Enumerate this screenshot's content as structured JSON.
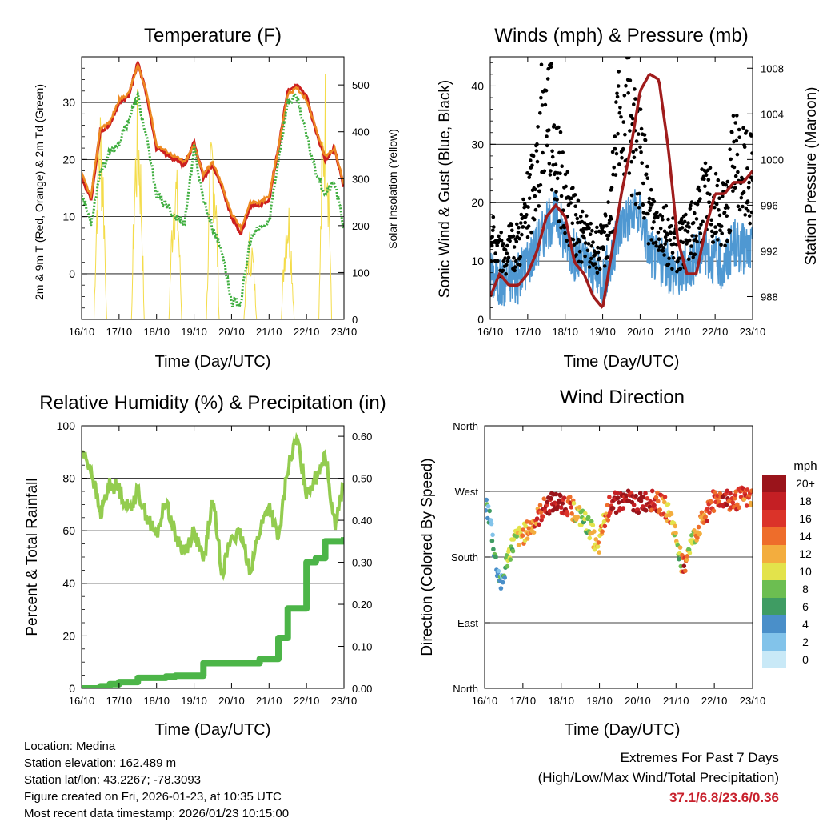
{
  "colors": {
    "temp2m": "#cc1f1f",
    "temp9m": "#ee8a22",
    "dewpoint": "#3fae3f",
    "solar": "#f4dc4a",
    "sonic_wind": "#4f98d2",
    "gust": "#000000",
    "pressure": "#a01c1c",
    "rh": "#93cc4f",
    "precip": "#4cb548",
    "extremes_text": "#c8202c"
  },
  "charts": {
    "temperature": {
      "title": "Temperature (F)",
      "xlabel": "Time (Day/UTC)",
      "ylabel_left": "2m & 9m T (Red, Orange) & 2m Td (Green)",
      "ylabel_right": "Solar Insolation (Yellow)"
    },
    "winds": {
      "title": "Winds (mph) & Pressure (mb)",
      "xlabel": "Time (Day/UTC)",
      "ylabel_left": "Sonic Wind & Gust (Blue, Black)",
      "ylabel_right": "Station Pressure (Maroon)"
    },
    "humidity": {
      "title": "Relative Humidity (%) & Precipitation (in)",
      "xlabel": "Time (Day/UTC)",
      "ylabel_left": "Percent & Total Rainfall"
    },
    "direction": {
      "title": "Wind Direction",
      "xlabel": "Time (Day/UTC)",
      "ylabel_left": "Direction (Colored By Speed)",
      "legend_title": "mph"
    }
  },
  "info": {
    "location": "Location: Medina",
    "elevation": "Station elevation: 162.489 m",
    "latlon": "Station lat/lon: 43.2267; -78.3093",
    "created": "Figure created on Fri, 2026-01-23, at 10:35 UTC",
    "latest": "Most recent data timestamp: 2026/01/23 10:15:00"
  },
  "extremes": {
    "title": "Extremes For Past 7 Days",
    "subtitle": "(High/Low/Max Wind/Total Precipitation)",
    "values": "37.1/6.8/23.6/0.36"
  },
  "chart_data": [
    {
      "id": "temperature",
      "type": "line",
      "title": "Temperature (F)",
      "x": [
        16,
        16.25,
        16.5,
        16.75,
        17,
        17.25,
        17.5,
        17.75,
        18,
        18.25,
        18.5,
        18.75,
        19,
        19.25,
        19.5,
        19.75,
        20,
        20.25,
        20.5,
        20.75,
        21,
        21.25,
        21.5,
        21.75,
        22,
        22.25,
        22.5,
        22.75,
        23
      ],
      "x_tick_labels": [
        "16/10",
        "17/10",
        "18/10",
        "19/10",
        "20/10",
        "21/10",
        "22/10",
        "23/10"
      ],
      "x_tick_values": [
        16,
        17,
        18,
        19,
        20,
        21,
        22,
        23
      ],
      "ylim": [
        -8,
        38
      ],
      "y_ticks": [
        0,
        10,
        20,
        30
      ],
      "y2lim": [
        0,
        560
      ],
      "y2_ticks": [
        0,
        100,
        200,
        300,
        400,
        500
      ],
      "series": [
        {
          "name": "2m T",
          "color_key": "temp2m",
          "values": [
            17,
            13,
            25,
            26,
            30,
            31,
            37,
            31,
            22,
            21,
            20,
            19,
            23,
            17,
            19,
            15,
            10,
            7,
            12,
            12,
            13,
            22,
            32,
            33,
            31,
            25,
            20,
            22,
            15
          ]
        },
        {
          "name": "9m T",
          "color_key": "temp9m",
          "values": [
            17.5,
            13.5,
            25.5,
            26.5,
            30.5,
            31.5,
            36.5,
            31.5,
            22.5,
            21.5,
            20.5,
            19.5,
            22.5,
            17.5,
            19.5,
            15.5,
            10.5,
            8,
            12.5,
            12.5,
            13.5,
            22,
            31.5,
            32.5,
            30.5,
            25.5,
            20.5,
            22,
            15.5
          ]
        },
        {
          "name": "2m Td",
          "color_key": "dewpoint",
          "values": [
            14,
            9,
            18,
            21,
            23,
            27,
            31,
            23,
            14,
            12,
            10,
            9,
            22,
            13,
            8,
            4,
            -5,
            -5,
            6,
            8,
            9,
            20,
            30,
            31,
            24,
            18,
            14,
            16,
            8
          ]
        }
      ],
      "solar_series": {
        "name": "Solar Insolation",
        "color_key": "solar",
        "axis": "right",
        "daily_peaks_x": [
          16.5,
          17.5,
          18.5,
          19.5,
          20.5,
          21.5,
          22.5
        ],
        "daily_peaks_values": [
          490,
          500,
          360,
          450,
          200,
          280,
          560
        ]
      }
    },
    {
      "id": "winds",
      "type": "line",
      "title": "Winds (mph) & Pressure (mb)",
      "x": [
        16,
        16.25,
        16.5,
        16.75,
        17,
        17.25,
        17.5,
        17.75,
        18,
        18.25,
        18.5,
        18.75,
        19,
        19.25,
        19.5,
        19.75,
        20,
        20.25,
        20.5,
        20.75,
        21,
        21.25,
        21.5,
        21.75,
        22,
        22.25,
        22.5,
        22.75,
        23
      ],
      "x_tick_labels": [
        "16/10",
        "17/10",
        "18/10",
        "19/10",
        "20/10",
        "21/10",
        "22/10",
        "23/10"
      ],
      "x_tick_values": [
        16,
        17,
        18,
        19,
        20,
        21,
        22,
        23
      ],
      "ylim": [
        0,
        45
      ],
      "y_ticks": [
        0,
        10,
        20,
        30,
        40
      ],
      "y2lim": [
        986,
        1009
      ],
      "y2_ticks": [
        988,
        992,
        996,
        1000,
        1004,
        1008
      ],
      "series": [
        {
          "name": "Sonic Wind",
          "color_key": "sonic_wind",
          "values": [
            8,
            6,
            7,
            7,
            10,
            13,
            16,
            18,
            14,
            11,
            10,
            8,
            7,
            10,
            17,
            18,
            18,
            12,
            10,
            9,
            8,
            9,
            11,
            12,
            10,
            9,
            13,
            12,
            12
          ]
        },
        {
          "name": "Gust",
          "color_key": "gust",
          "values": [
            15,
            11,
            12,
            13,
            19,
            26,
            40,
            28,
            20,
            16,
            14,
            12,
            12,
            20,
            39,
            32,
            29,
            18,
            17,
            14,
            12,
            14,
            17,
            21,
            19,
            17,
            27,
            25,
            24
          ]
        },
        {
          "name": "Station Pressure",
          "color_key": "pressure",
          "axis": "right",
          "values": [
            988,
            990,
            989,
            989,
            990,
            992,
            995,
            996,
            995,
            991,
            990,
            988,
            987,
            992,
            997,
            1001,
            1006,
            1007.5,
            1007,
            1001,
            993,
            990,
            990,
            994,
            997,
            997,
            998,
            998,
            999
          ]
        }
      ]
    },
    {
      "id": "humidity",
      "type": "line",
      "title": "Relative Humidity (%) & Precipitation (in)",
      "x": [
        16,
        16.25,
        16.5,
        16.75,
        17,
        17.25,
        17.5,
        17.75,
        18,
        18.25,
        18.5,
        18.75,
        19,
        19.25,
        19.5,
        19.75,
        20,
        20.25,
        20.5,
        20.75,
        21,
        21.25,
        21.5,
        21.75,
        22,
        22.25,
        22.5,
        22.75,
        23
      ],
      "x_tick_labels": [
        "16/10",
        "17/10",
        "18/10",
        "19/10",
        "20/10",
        "21/10",
        "22/10",
        "23/10"
      ],
      "x_tick_values": [
        16,
        17,
        18,
        19,
        20,
        21,
        22,
        23
      ],
      "ylim": [
        0,
        100
      ],
      "y_ticks": [
        0,
        20,
        40,
        60,
        80,
        100
      ],
      "y2lim": [
        0,
        0.625
      ],
      "y2_ticks": [
        0,
        0.1,
        0.2,
        0.3,
        0.4,
        0.5,
        0.6
      ],
      "y2_tick_labels": [
        "0.00",
        "0.10",
        "0.20",
        "0.30",
        "0.40",
        "0.50",
        "0.60"
      ],
      "series": [
        {
          "name": "Relative Humidity",
          "color_key": "rh",
          "values": [
            90,
            84,
            66,
            78,
            76,
            68,
            75,
            65,
            58,
            72,
            58,
            52,
            60,
            48,
            72,
            44,
            58,
            58,
            45,
            60,
            70,
            56,
            84,
            95,
            75,
            80,
            90,
            62,
            78
          ]
        },
        {
          "name": "Total Precipitation",
          "color_key": "precip",
          "axis": "right",
          "values": [
            0,
            0,
            0.005,
            0.01,
            0.015,
            0.015,
            0.025,
            0.025,
            0.025,
            0.028,
            0.03,
            0.03,
            0.03,
            0.06,
            0.06,
            0.06,
            0.06,
            0.06,
            0.06,
            0.07,
            0.07,
            0.12,
            0.19,
            0.19,
            0.3,
            0.31,
            0.35,
            0.35,
            0.36
          ]
        }
      ]
    },
    {
      "id": "direction",
      "type": "scatter",
      "title": "Wind Direction",
      "x": [
        16.05,
        16.15,
        16.3,
        16.45,
        16.6,
        16.8,
        17.0,
        17.2,
        17.4,
        17.6,
        17.8,
        18.0,
        18.2,
        18.4,
        18.6,
        18.8,
        18.95,
        19.1,
        19.3,
        19.5,
        19.7,
        19.9,
        20.1,
        20.3,
        20.5,
        20.7,
        20.9,
        21.1,
        21.2,
        21.3,
        21.5,
        21.7,
        21.9,
        22.1,
        22.3,
        22.5,
        22.7,
        22.9
      ],
      "x_tick_labels": [
        "16/10",
        "17/10",
        "18/10",
        "19/10",
        "20/10",
        "21/10",
        "22/10",
        "23/10"
      ],
      "x_tick_values": [
        16,
        17,
        18,
        19,
        20,
        21,
        22,
        23
      ],
      "ylim": [
        0,
        360
      ],
      "y_ticks": [
        0,
        90,
        180,
        270,
        360
      ],
      "y_tick_labels": [
        "North",
        "East",
        "South",
        "West",
        "North"
      ],
      "values": [
        250,
        230,
        170,
        140,
        180,
        205,
        210,
        220,
        235,
        250,
        255,
        255,
        250,
        240,
        230,
        215,
        185,
        225,
        255,
        255,
        258,
        255,
        255,
        258,
        255,
        250,
        230,
        185,
        160,
        190,
        210,
        230,
        255,
        260,
        262,
        255,
        262,
        260
      ],
      "speeds": [
        6,
        4,
        6,
        5,
        7,
        10,
        12,
        14,
        15,
        18,
        20,
        18,
        16,
        10,
        8,
        10,
        12,
        12,
        18,
        20,
        19,
        18,
        20,
        18,
        17,
        14,
        12,
        8,
        20,
        10,
        12,
        14,
        16,
        16,
        18,
        16,
        16,
        14
      ],
      "colorbar": {
        "title": "mph",
        "labels": [
          "0",
          "2",
          "4",
          "6",
          "8",
          "10",
          "12",
          "14",
          "16",
          "18",
          "20+"
        ],
        "colors": [
          "#c9e9f7",
          "#82c3ea",
          "#4a8fc9",
          "#3f9c63",
          "#6cbe51",
          "#e3e34b",
          "#f3ad3e",
          "#ee6d2b",
          "#db3329",
          "#c41f24",
          "#9a141b"
        ]
      }
    }
  ]
}
